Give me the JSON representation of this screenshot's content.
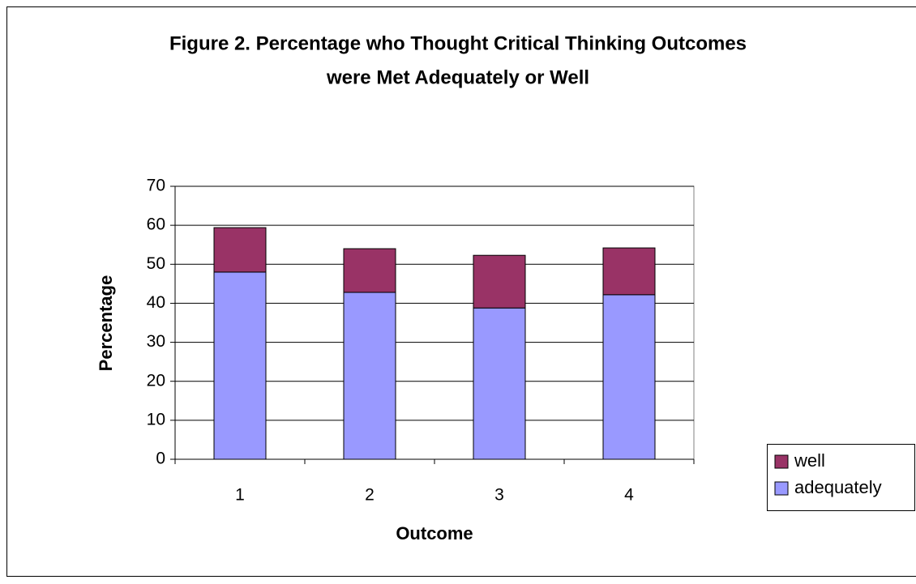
{
  "chart_data": {
    "type": "stacked_bar",
    "title": [
      "Figure 2.  Percentage who Thought Critical Thinking Outcomes",
      "were Met Adequately or Well"
    ],
    "x_label": "Outcome",
    "y_label": "Percentage",
    "categories": [
      "1",
      "2",
      "3",
      "4"
    ],
    "series": [
      {
        "name": "adequately",
        "color": "#9999ff",
        "values": [
          48.0,
          42.8,
          38.8,
          42.2
        ]
      },
      {
        "name": "well",
        "color": "#993366",
        "values": [
          11.4,
          11.2,
          13.5,
          12.0
        ]
      }
    ],
    "ylim": [
      0,
      70
    ],
    "yticks": [
      0,
      10,
      20,
      30,
      40,
      50,
      60,
      70
    ],
    "grid": true,
    "legend": "right"
  }
}
